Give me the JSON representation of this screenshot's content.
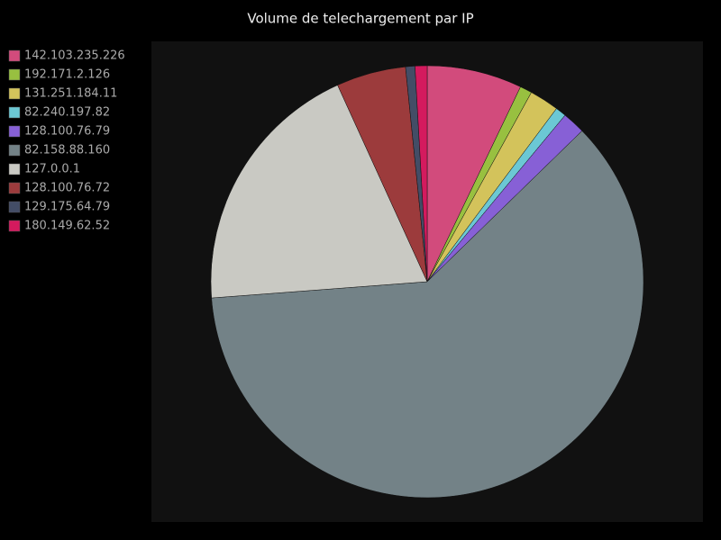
{
  "chart_data": {
    "type": "pie",
    "title": "Volume de telechargement par IP",
    "categories": [
      "142.103.235.226",
      "192.171.2.126",
      "131.251.184.11",
      "82.240.197.82",
      "128.100.76.79",
      "82.158.88.160",
      "127.0.0.1",
      "128.100.76.72",
      "129.175.64.79",
      "180.149.62.52"
    ],
    "values": [
      7.1,
      0.9,
      2.2,
      0.8,
      1.7,
      61.1,
      19.4,
      5.2,
      0.7,
      0.9
    ],
    "colors": [
      "#d24b7c",
      "#98c040",
      "#d3c35b",
      "#6bc8d4",
      "#8760d6",
      "#738287",
      "#c9c9c3",
      "#9c3b3c",
      "#434d66",
      "#d41a5e"
    ],
    "legend": "top-left"
  }
}
